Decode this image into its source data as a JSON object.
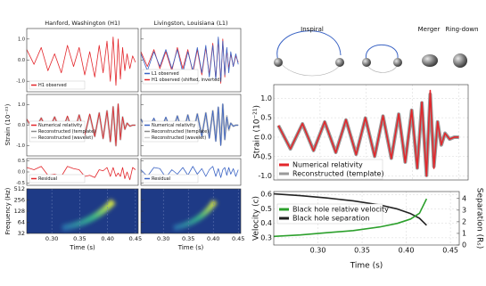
{
  "chart_data": [
    {
      "type": "line",
      "title": "Hanford, Washington (H1)",
      "xlim": [
        0.255,
        0.455
      ],
      "ylim": [
        -1.5,
        1.5
      ],
      "yticks": [
        {
          "value": -1,
          "label": "-1.0"
        },
        {
          "value": 0,
          "label": "0.0"
        },
        {
          "value": 1,
          "label": "1.0"
        }
      ],
      "x": [
        0.255,
        0.268,
        0.281,
        0.293,
        0.305,
        0.317,
        0.328,
        0.339,
        0.349,
        0.359,
        0.368,
        0.377,
        0.385,
        0.392,
        0.399,
        0.405,
        0.41,
        0.415,
        0.419,
        0.423,
        0.427,
        0.431,
        0.435,
        0.44,
        0.445,
        0.45
      ],
      "series": [
        {
          "name": "H1 observed",
          "color": "#e3262b",
          "values": [
            0.5,
            -0.2,
            0.6,
            -0.5,
            0.3,
            -0.6,
            0.7,
            -0.3,
            0.6,
            -0.7,
            0.4,
            -0.8,
            0.7,
            -0.6,
            0.9,
            -1.0,
            1.1,
            -1.2,
            1.0,
            -0.9,
            0.6,
            -0.5,
            0.3,
            -0.4,
            0.2,
            -0.1
          ]
        }
      ]
    },
    {
      "type": "line",
      "title": "Livingston, Louisiana (L1)",
      "xlim": [
        0.255,
        0.455
      ],
      "ylim": [
        -1.5,
        1.5
      ],
      "yticks": [
        {
          "value": -1,
          "label": "-1.0"
        },
        {
          "value": 0,
          "label": "0.0"
        },
        {
          "value": 1,
          "label": "1.0"
        }
      ],
      "x": [
        0.255,
        0.268,
        0.281,
        0.293,
        0.305,
        0.317,
        0.328,
        0.339,
        0.349,
        0.359,
        0.368,
        0.377,
        0.385,
        0.392,
        0.399,
        0.405,
        0.41,
        0.415,
        0.419,
        0.423,
        0.427,
        0.431,
        0.435,
        0.44,
        0.445,
        0.45
      ],
      "series": [
        {
          "name": "H1 observed (shifted, inverted)",
          "color": "#e3262b",
          "values": [
            0.4,
            -0.3,
            0.5,
            -0.4,
            0.4,
            -0.5,
            0.6,
            -0.4,
            0.5,
            -0.6,
            0.5,
            -0.7,
            0.6,
            -0.7,
            0.8,
            -0.9,
            1.0,
            -1.1,
            1.0,
            -0.8,
            0.5,
            -0.4,
            0.3,
            -0.3,
            0.2,
            -0.1
          ]
        },
        {
          "name": "L1 observed",
          "color": "#3a63c4",
          "values": [
            0.3,
            -0.5,
            0.4,
            -0.3,
            0.5,
            -0.4,
            0.5,
            -0.6,
            0.4,
            -0.5,
            0.6,
            -0.6,
            0.7,
            -0.8,
            0.7,
            -0.9,
            1.1,
            -1.0,
            0.9,
            -0.7,
            0.6,
            -0.6,
            0.4,
            -0.3,
            0.3,
            -0.2
          ]
        }
      ]
    },
    {
      "type": "line",
      "ylabel": "Strain (10⁻²¹)",
      "xlim": [
        0.255,
        0.455
      ],
      "ylim": [
        -1.5,
        1.5
      ],
      "yticks": [
        {
          "value": -1,
          "label": "-1.0"
        },
        {
          "value": 0,
          "label": "0.0"
        },
        {
          "value": 1,
          "label": "1.0"
        }
      ],
      "x": [
        0.255,
        0.268,
        0.281,
        0.293,
        0.305,
        0.317,
        0.328,
        0.339,
        0.349,
        0.359,
        0.368,
        0.377,
        0.385,
        0.392,
        0.399,
        0.405,
        0.41,
        0.415,
        0.419,
        0.423,
        0.427,
        0.431,
        0.435,
        0.44,
        0.445,
        0.45
      ],
      "series": [
        {
          "name": "Reconstructed (wavelet)",
          "color": "#c8c8c8",
          "values": [
            0.25,
            -0.3,
            0.35,
            -0.3,
            0.4,
            -0.4,
            0.4,
            -0.45,
            0.5,
            -0.5,
            0.5,
            -0.55,
            0.6,
            -0.65,
            0.7,
            -0.8,
            0.9,
            -1.0,
            1.0,
            -0.7,
            0.4,
            -0.2,
            0.1,
            -0.05,
            0,
            0
          ]
        },
        {
          "name": "Reconstructed (template)",
          "color": "#8a8a8a",
          "values": [
            0.3,
            -0.3,
            0.34,
            -0.34,
            0.39,
            -0.39,
            0.44,
            -0.44,
            0.49,
            -0.49,
            0.54,
            -0.54,
            0.59,
            -0.64,
            0.69,
            -0.79,
            0.88,
            -0.98,
            1.02,
            -0.68,
            0.39,
            -0.2,
            0.1,
            -0.05,
            0,
            0
          ]
        },
        {
          "name": "Numerical relativity",
          "color": "#e3262b",
          "values": [
            0.3,
            -0.3,
            0.35,
            -0.35,
            0.4,
            -0.4,
            0.45,
            -0.45,
            0.5,
            -0.5,
            0.55,
            -0.55,
            0.6,
            -0.65,
            0.7,
            -0.8,
            0.9,
            -1.0,
            1.05,
            -0.7,
            0.4,
            -0.2,
            0.1,
            -0.05,
            0,
            0
          ]
        }
      ]
    },
    {
      "type": "line",
      "xlim": [
        0.255,
        0.455
      ],
      "ylim": [
        -1.5,
        1.5
      ],
      "yticks": [
        {
          "value": -1,
          "label": "-1.0"
        },
        {
          "value": 0,
          "label": "0.0"
        },
        {
          "value": 1,
          "label": "1.0"
        }
      ],
      "x": [
        0.255,
        0.268,
        0.281,
        0.293,
        0.305,
        0.317,
        0.328,
        0.339,
        0.349,
        0.359,
        0.368,
        0.377,
        0.385,
        0.392,
        0.399,
        0.405,
        0.41,
        0.415,
        0.419,
        0.423,
        0.427,
        0.431,
        0.435,
        0.44,
        0.445,
        0.45
      ],
      "series": [
        {
          "name": "Reconstructed (wavelet)",
          "color": "#c8c8c8",
          "values": [
            0.3,
            -0.25,
            0.3,
            -0.35,
            0.35,
            -0.4,
            0.45,
            -0.4,
            0.5,
            -0.45,
            0.55,
            -0.5,
            0.6,
            -0.6,
            0.7,
            -0.75,
            0.85,
            -0.95,
            1.0,
            -0.7,
            0.45,
            -0.25,
            0.1,
            -0.05,
            0,
            0
          ]
        },
        {
          "name": "Reconstructed (template)",
          "color": "#8a8a8a",
          "values": [
            0.3,
            -0.3,
            0.34,
            -0.34,
            0.39,
            -0.39,
            0.44,
            -0.44,
            0.49,
            -0.49,
            0.54,
            -0.54,
            0.59,
            -0.64,
            0.69,
            -0.79,
            0.88,
            -0.98,
            1.02,
            -0.68,
            0.39,
            -0.2,
            0.1,
            -0.05,
            0,
            0
          ]
        },
        {
          "name": "Numerical relativity",
          "color": "#3a63c4",
          "values": [
            0.3,
            -0.3,
            0.35,
            -0.35,
            0.4,
            -0.4,
            0.45,
            -0.45,
            0.5,
            -0.5,
            0.55,
            -0.55,
            0.6,
            -0.65,
            0.7,
            -0.8,
            0.9,
            -1.0,
            1.05,
            -0.7,
            0.4,
            -0.2,
            0.1,
            -0.05,
            0,
            0
          ]
        }
      ]
    },
    {
      "type": "line",
      "xlim": [
        0.255,
        0.455
      ],
      "ylim": [
        -0.6,
        0.6
      ],
      "yticks": [
        {
          "value": -0.5,
          "label": "-0.5"
        },
        {
          "value": 0,
          "label": "0.0"
        },
        {
          "value": 0.5,
          "label": "0.5"
        }
      ],
      "x": [
        0.255,
        0.268,
        0.281,
        0.293,
        0.305,
        0.317,
        0.328,
        0.339,
        0.349,
        0.359,
        0.368,
        0.377,
        0.385,
        0.392,
        0.399,
        0.405,
        0.41,
        0.415,
        0.419,
        0.423,
        0.427,
        0.431,
        0.435,
        0.44,
        0.445,
        0.45
      ],
      "series": [
        {
          "name": "Residual",
          "color": "#e3262b",
          "values": [
            0.2,
            0.1,
            0.25,
            -0.15,
            -0.1,
            -0.2,
            0.25,
            0.15,
            0.1,
            -0.2,
            -0.15,
            -0.25,
            0.1,
            0.05,
            0.2,
            -0.2,
            0.2,
            -0.2,
            -0.05,
            -0.2,
            0.2,
            -0.3,
            0,
            -0.35,
            0.2,
            0.1
          ]
        }
      ]
    },
    {
      "type": "line",
      "xlim": [
        0.255,
        0.455
      ],
      "ylim": [
        -0.6,
        0.6
      ],
      "yticks": [
        {
          "value": -0.5,
          "label": "-0.5"
        },
        {
          "value": 0,
          "label": "0.0"
        },
        {
          "value": 0.5,
          "label": "0.5"
        }
      ],
      "x": [
        0.255,
        0.268,
        0.281,
        0.293,
        0.305,
        0.317,
        0.328,
        0.339,
        0.349,
        0.359,
        0.368,
        0.377,
        0.385,
        0.392,
        0.399,
        0.405,
        0.41,
        0.415,
        0.419,
        0.423,
        0.427,
        0.431,
        0.435,
        0.44,
        0.445,
        0.45
      ],
      "series": [
        {
          "name": "Residual",
          "color": "#3a63c4",
          "values": [
            0.1,
            -0.2,
            0.2,
            0.15,
            -0.25,
            0.1,
            -0.1,
            0.2,
            -0.15,
            0.25,
            -0.1,
            0.15,
            -0.2,
            0.1,
            0.25,
            -0.2,
            0.15,
            -0.25,
            0.1,
            0.2,
            -0.15,
            0.2,
            -0.1,
            0.15,
            -0.2,
            0.1
          ]
        }
      ]
    },
    {
      "type": "spectrogram",
      "ylabel": "Frequency (Hz)",
      "xlabel": "Time (s)",
      "xlim": [
        0.255,
        0.455
      ],
      "ylim": [
        32,
        512
      ],
      "log_y": true,
      "xticks": [
        {
          "value": 0.3,
          "label": "0.30"
        },
        0.35,
        {
          "value": 0.4,
          "label": "0.40"
        },
        0.45
      ],
      "yticks": [
        32,
        64,
        128,
        256,
        512
      ]
    },
    {
      "type": "spectrogram",
      "xlabel": "Time (s)",
      "xlim": [
        0.255,
        0.455
      ],
      "ylim": [
        32,
        512
      ],
      "log_y": true,
      "xticks": [
        {
          "value": 0.3,
          "label": "0.30"
        },
        0.35,
        {
          "value": 0.4,
          "label": "0.40"
        },
        0.45
      ],
      "yticks": [
        32,
        64,
        128,
        256,
        512
      ]
    },
    {
      "type": "line",
      "ylabel": "Strain (10⁻²¹)",
      "annotations": [
        "Inspiral",
        "Merger",
        "Ring-down"
      ],
      "grid": true,
      "xlim": [
        0.25,
        0.46
      ],
      "ylim": [
        -1.1,
        1.35
      ],
      "xticks": [
        {
          "value": 0.3,
          "label": "0.30"
        },
        0.35,
        {
          "value": 0.4,
          "label": "0.40"
        },
        0.45
      ],
      "yticks": [
        {
          "value": -1,
          "label": "-1.0"
        },
        -0.5,
        {
          "value": 0,
          "label": "0.0"
        },
        0.5,
        {
          "value": 1,
          "label": "1.0"
        }
      ],
      "x": [
        0.255,
        0.268,
        0.281,
        0.293,
        0.305,
        0.317,
        0.328,
        0.339,
        0.349,
        0.359,
        0.368,
        0.377,
        0.385,
        0.392,
        0.399,
        0.405,
        0.41,
        0.415,
        0.419,
        0.423,
        0.427,
        0.431,
        0.435,
        0.44,
        0.445,
        0.45
      ],
      "series": [
        {
          "name": "Reconstructed (template)",
          "color": "#9a9a9a",
          "values": [
            0.3,
            -0.3,
            0.34,
            -0.34,
            0.39,
            -0.39,
            0.44,
            -0.44,
            0.49,
            -0.49,
            0.54,
            -0.54,
            0.59,
            -0.64,
            0.69,
            -0.79,
            0.88,
            -0.98,
            1.1,
            -0.75,
            0.39,
            -0.2,
            0.1,
            -0.05,
            0,
            0
          ]
        },
        {
          "name": "Numerical relativity",
          "color": "#e3262b",
          "values": [
            0.3,
            -0.3,
            0.35,
            -0.35,
            0.4,
            -0.4,
            0.45,
            -0.45,
            0.5,
            -0.5,
            0.55,
            -0.55,
            0.6,
            -0.65,
            0.7,
            -0.8,
            0.9,
            -1.0,
            1.2,
            -0.8,
            0.4,
            -0.2,
            0.1,
            -0.05,
            0,
            0
          ]
        }
      ]
    },
    {
      "type": "line",
      "xlabel": "Time (s)",
      "ylabel": "Velocity (c)",
      "y2label": "Separation (Rₛ)",
      "grid": true,
      "xlim": [
        0.25,
        0.46
      ],
      "ylim": [
        0.25,
        0.62
      ],
      "y2lim": [
        0,
        4.6
      ],
      "xticks": [
        {
          "value": 0.3,
          "label": "0.30"
        },
        0.35,
        {
          "value": 0.4,
          "label": "0.40"
        },
        0.45
      ],
      "yticks": [
        0.3,
        0.4,
        0.5,
        0.6
      ],
      "y2ticks": [
        0,
        1,
        2,
        3,
        4
      ],
      "x": [
        0.25,
        0.28,
        0.31,
        0.34,
        0.37,
        0.39,
        0.405,
        0.415,
        0.423
      ],
      "series": [
        {
          "name": "Black hole separation",
          "color": "#222222",
          "axis": "y2",
          "values": [
            4.4,
            4.25,
            4.05,
            3.8,
            3.45,
            3.1,
            2.7,
            2.3,
            1.7
          ]
        },
        {
          "name": "Black hole relative velocity",
          "color": "#2ca02c",
          "values": [
            0.31,
            0.32,
            0.335,
            0.35,
            0.375,
            0.4,
            0.43,
            0.47,
            0.57
          ]
        }
      ]
    }
  ]
}
